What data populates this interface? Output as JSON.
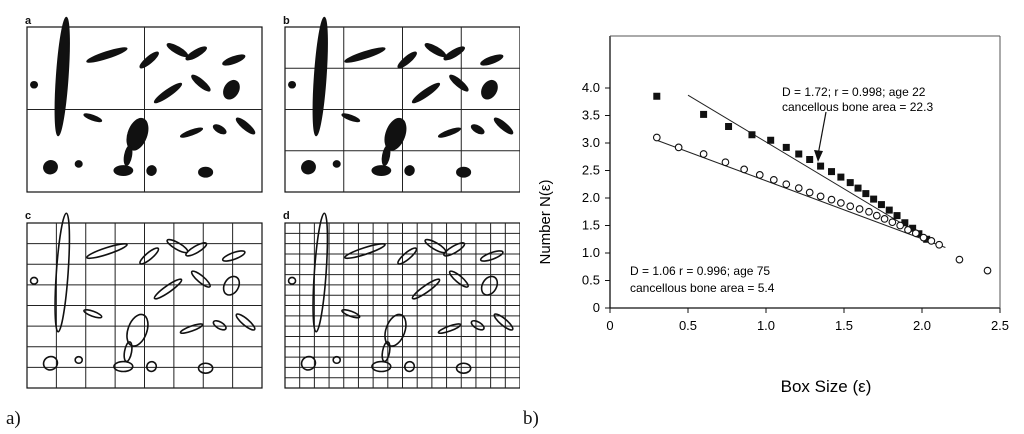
{
  "figure": {
    "caption_a": "a)",
    "caption_b": "b)",
    "subpanel_labels": [
      "a",
      "b",
      "c",
      "d"
    ]
  },
  "chart_data": {
    "type": "scatter",
    "xlabel": "Box Size (ε)",
    "ylabel": "Number N(ε)",
    "xlim": [
      0,
      2.5
    ],
    "ylim": [
      0,
      4.0
    ],
    "xticks": [
      "0",
      "0.5",
      "1.0",
      "1.5",
      "2.0",
      "2.5"
    ],
    "yticks": [
      "0",
      "0.5",
      "1.0",
      "1.5",
      "2.0",
      "2.5",
      "3.0",
      "3.5",
      "4.0"
    ],
    "grid": false,
    "annotations": {
      "upper_line1": "D = 1.72; r = 0.998; age 22",
      "upper_line2": "cancellous bone area = 22.3",
      "lower_line1": "D = 1.06  r = 0.996; age 75",
      "lower_line2": "cancellous bone area = 5.4"
    },
    "series": [
      {
        "marker": "filled-square",
        "x": [
          0.3,
          0.6,
          0.76,
          0.91,
          1.03,
          1.13,
          1.21,
          1.28,
          1.35,
          1.42,
          1.48,
          1.54,
          1.59,
          1.64,
          1.69,
          1.74,
          1.79,
          1.84,
          1.89,
          1.94,
          1.98,
          2.03
        ],
        "y": [
          3.85,
          3.52,
          3.3,
          3.15,
          3.05,
          2.92,
          2.8,
          2.7,
          2.58,
          2.48,
          2.38,
          2.28,
          2.18,
          2.08,
          1.98,
          1.88,
          1.78,
          1.68,
          1.55,
          1.45,
          1.35,
          1.25
        ],
        "fit": {
          "x": [
            0.5,
            2.05
          ],
          "y": [
            3.87,
            1.23
          ]
        }
      },
      {
        "marker": "open-circle",
        "x": [
          0.3,
          0.44,
          0.6,
          0.74,
          0.86,
          0.96,
          1.05,
          1.13,
          1.21,
          1.28,
          1.35,
          1.42,
          1.48,
          1.54,
          1.6,
          1.66,
          1.71,
          1.76,
          1.81,
          1.86,
          1.91,
          1.96,
          2.01,
          2.06,
          2.11,
          2.24,
          2.42
        ],
        "y": [
          3.1,
          2.92,
          2.8,
          2.65,
          2.52,
          2.42,
          2.33,
          2.25,
          2.18,
          2.1,
          2.03,
          1.97,
          1.91,
          1.85,
          1.8,
          1.75,
          1.68,
          1.62,
          1.56,
          1.5,
          1.42,
          1.36,
          1.28,
          1.22,
          1.15,
          0.88,
          0.68
        ],
        "fit": {
          "x": [
            0.3,
            2.15
          ],
          "y": [
            3.05,
            1.1
          ]
        }
      }
    ]
  }
}
